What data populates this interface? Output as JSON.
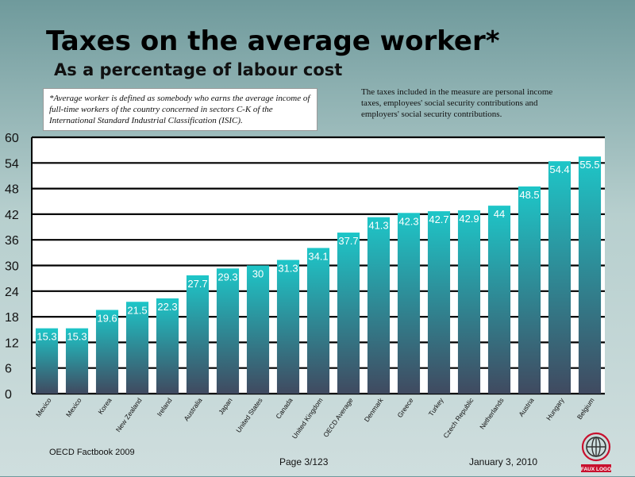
{
  "chart_data": {
    "type": "bar",
    "title": "Taxes on the average worker*",
    "subtitle": "As a percentage of labour cost",
    "categories": [
      "Mexico",
      "Mexico",
      "Korea",
      "New Zealand",
      "Ireland",
      "Australia",
      "Japan",
      "United States",
      "Canada",
      "United Kingdom",
      "OECD Average",
      "Denmark",
      "Greece",
      "Turkey",
      "Czech Republic",
      "Netherlands",
      "Austria",
      "Hungary",
      "Belgium"
    ],
    "values": [
      15.3,
      15.3,
      19.6,
      21.5,
      22.3,
      27.7,
      29.3,
      30,
      31.3,
      34.1,
      37.7,
      41.3,
      42.3,
      42.7,
      42.9,
      44,
      48.5,
      54.4,
      55.5
    ],
    "data_labels": [
      "15.3",
      "15.3",
      "19.6",
      "21.5",
      "22.3",
      "27.7",
      "29.3",
      "30",
      "31.3",
      "34.1",
      "37.7",
      "41.3",
      "42.3",
      "42.7",
      "42.9",
      "44",
      "48.5",
      "54.4",
      "55.5"
    ],
    "ylim": [
      0,
      60
    ],
    "yticks": [
      "0",
      "6",
      "12",
      "18",
      "24",
      "30",
      "36",
      "42",
      "48",
      "54",
      "60"
    ],
    "grid": true,
    "colors": {
      "bar_top": "#1ec6c8",
      "bar_bottom": "#404a60",
      "plot_bg": "#ffffff",
      "grid": "#000000"
    }
  },
  "footnote": "*Average worker is defined as somebody who earns the average income of full-time workers of the country concerned in sectors C-K of the International Standard Industrial Classification (ISIC).",
  "note": "The taxes included in the measure are personal income taxes, employees' social security contributions and employers' social security contributions.",
  "footer": {
    "source": "OECD Factbook 2009",
    "page": "Page 3/123",
    "date": "January 3, 2010"
  },
  "logo": {
    "text": "FAUX LOGO",
    "color": "#c8102e",
    "icon": "globe-icon"
  }
}
